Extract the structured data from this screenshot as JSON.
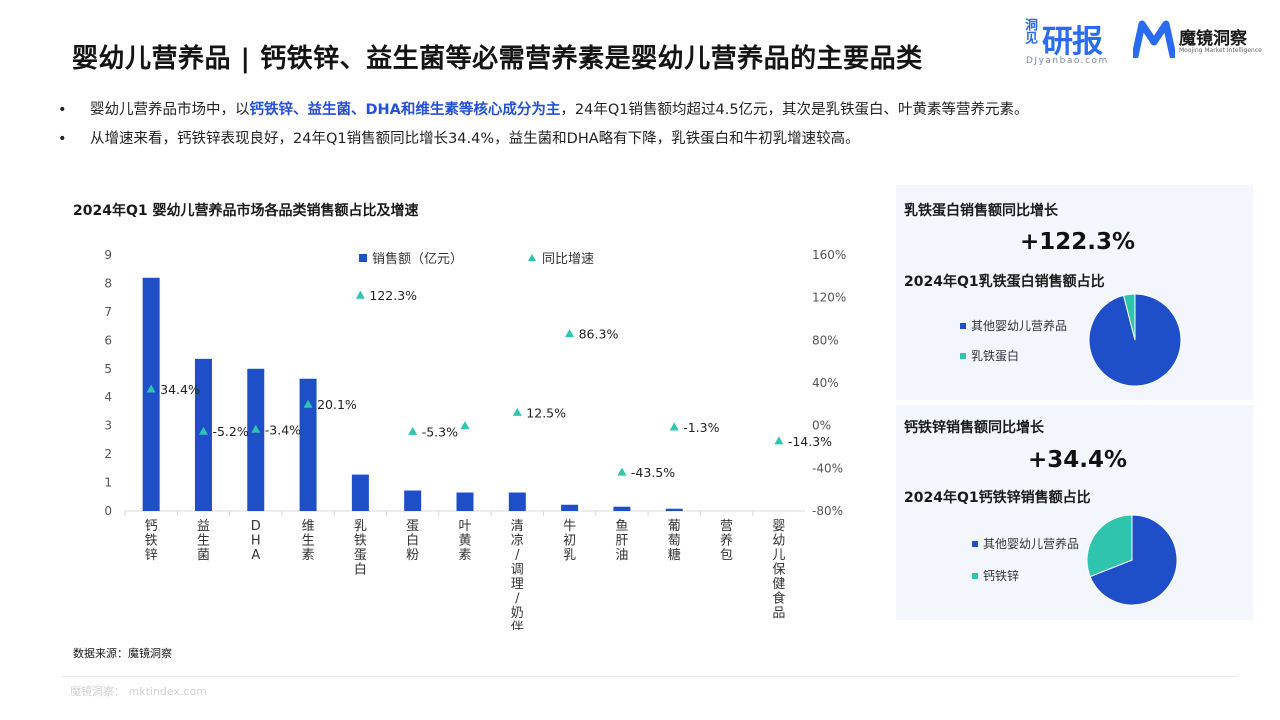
{
  "title": "婴幼儿营养品 | 钙铁锌、益生菌等必需营养素是婴幼儿营养品的主要品类",
  "logos": {
    "yanbao_cn": "洞见",
    "yanbao_big": "研报",
    "yanbao_domain": "DJyanbao.com",
    "mojing_name": "魔镜洞察",
    "mojing_en": "Moojing Market Intelligence"
  },
  "bullets": [
    {
      "dot": "•",
      "pre": "婴幼儿营养品市场中，以",
      "highlight": "钙铁锌、益生菌、DHA和维生素等核心成分为主",
      "post": "，24年Q1销售额均超过4.5亿元，其次是乳铁蛋白、叶黄素等营养元素。"
    },
    {
      "dot": "•",
      "pre": "从增速来看，钙铁锌表现良好，24年Q1销售额同比增长34.4%，益生菌和DHA略有下降，乳铁蛋白和牛初乳增速较高。",
      "highlight": "",
      "post": ""
    }
  ],
  "chart_data": {
    "type": "bar",
    "title": "2024年Q1 婴幼儿营养品市场各品类销售额占比及增速",
    "categories": [
      "钙铁锌",
      "益生菌",
      "DHA",
      "维生素",
      "乳铁蛋白",
      "蛋白粉",
      "叶黄素",
      "清凉/调理/奶伴",
      "牛初乳",
      "鱼肝油",
      "葡萄糖",
      "营养包",
      "婴幼儿保健食品"
    ],
    "series": [
      {
        "name": "销售额（亿元）",
        "type": "bar",
        "axis": "left",
        "color": "#1e4fc9",
        "values": [
          8.2,
          5.35,
          5.0,
          4.65,
          1.28,
          0.72,
          0.65,
          0.65,
          0.22,
          0.15,
          0.08,
          0.0,
          0.0
        ]
      },
      {
        "name": "同比增速",
        "type": "marker",
        "axis": "right",
        "color": "#2ec4ae",
        "values": [
          34.4,
          -5.2,
          -3.4,
          20.1,
          122.3,
          -5.3,
          0.0,
          12.5,
          86.3,
          -43.5,
          -1.3,
          null,
          -14.3
        ],
        "labels": [
          "34.4%",
          "-5.2%",
          "-3.4%",
          "20.1%",
          "122.3%",
          "-5.3%",
          "",
          "12.5%",
          "86.3%",
          "-43.5%",
          "-1.3%",
          "",
          "-14.3%"
        ]
      }
    ],
    "ylim_left": [
      0,
      9
    ],
    "yticks_left": [
      "0",
      "1",
      "2",
      "3",
      "4",
      "5",
      "6",
      "7",
      "8",
      "9"
    ],
    "ylim_right": [
      -80,
      160
    ],
    "yticks_right": [
      "-80%",
      "-40%",
      "0%",
      "40%",
      "80%",
      "120%",
      "160%"
    ],
    "legend_position": "top-center",
    "grid": false
  },
  "panels": [
    {
      "growth_label": "乳铁蛋白销售额同比增长",
      "growth_value": "+122.3%",
      "share_label": "2024年Q1乳铁蛋白销售额占比",
      "pie": [
        {
          "name": "其他婴幼儿营养品",
          "share": 96.0,
          "color": "#1e4fc9"
        },
        {
          "name": "乳铁蛋白",
          "share": 4.0,
          "color": "#2ec4ae"
        }
      ]
    },
    {
      "growth_label": "钙铁锌销售额同比增长",
      "growth_value": "+34.4%",
      "share_label": "2024年Q1钙铁锌销售额占比",
      "pie": [
        {
          "name": "其他婴幼儿营养品",
          "share": 69.0,
          "color": "#1e4fc9"
        },
        {
          "name": "钙铁锌",
          "share": 31.0,
          "color": "#2ec4ae"
        }
      ]
    }
  ],
  "source": "数据来源：魔镜洞察",
  "footer": "魔镜洞察： mktindex.com"
}
